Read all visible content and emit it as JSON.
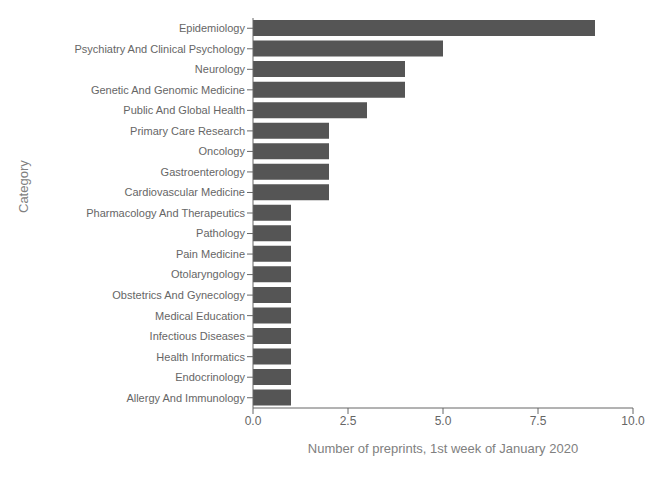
{
  "chart_data": {
    "type": "bar",
    "orientation": "horizontal",
    "categories": [
      "Epidemiology",
      "Psychiatry And Clinical Psychology",
      "Neurology",
      "Genetic And Genomic Medicine",
      "Public And Global Health",
      "Primary Care Research",
      "Oncology",
      "Gastroenterology",
      "Cardiovascular Medicine",
      "Pharmacology And Therapeutics",
      "Pathology",
      "Pain Medicine",
      "Otolaryngology",
      "Obstetrics And Gynecology",
      "Medical Education",
      "Infectious Diseases",
      "Health Informatics",
      "Endocrinology",
      "Allergy And Immunology"
    ],
    "values": [
      9,
      5,
      4,
      4,
      3,
      2,
      2,
      2,
      2,
      1,
      1,
      1,
      1,
      1,
      1,
      1,
      1,
      1,
      1
    ],
    "color": "#555555",
    "xlabel": "Number of preprints, 1st week of January 2020",
    "ylabel": "Category",
    "xlim": [
      0,
      10.0
    ],
    "xticks": [
      {
        "value": 0,
        "label": "0.0"
      },
      2.5,
      {
        "value": 5,
        "label": "5.0"
      },
      7.5,
      {
        "value": 10,
        "label": "10.0"
      }
    ],
    "grid": false
  }
}
